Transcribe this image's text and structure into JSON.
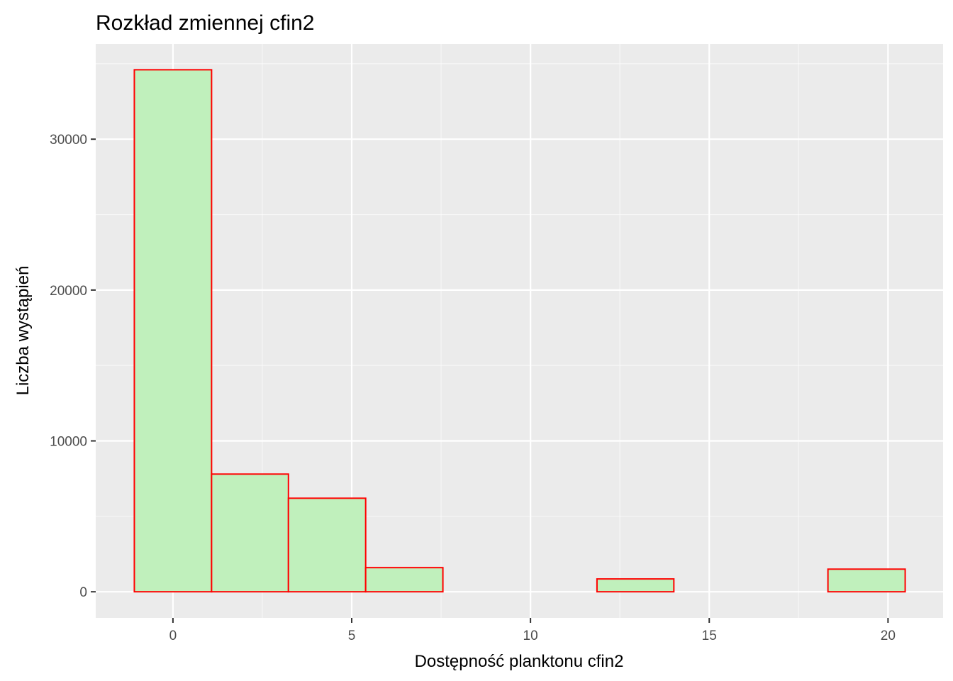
{
  "chart_data": {
    "type": "bar",
    "title": "Rozkład zmiennej cfin2",
    "xlabel": "Dostępność planktonu cfin2",
    "ylabel": "Liczba wystąpień",
    "xlim": [
      -2.16,
      21.54
    ],
    "ylim": [
      -1730,
      36310
    ],
    "x_ticks": [
      0,
      5,
      10,
      15,
      20
    ],
    "y_ticks": [
      0,
      10000,
      20000,
      30000
    ],
    "x_tick_labels": [
      "0",
      "5",
      "10",
      "15",
      "20"
    ],
    "y_tick_labels": [
      "0",
      "10000",
      "20000",
      "30000"
    ],
    "grid": true,
    "bins": [
      {
        "x0": -1.08,
        "x1": 1.08,
        "count": 34600
      },
      {
        "x0": 1.08,
        "x1": 3.23,
        "count": 7800
      },
      {
        "x0": 3.23,
        "x1": 5.39,
        "count": 6200
      },
      {
        "x0": 5.39,
        "x1": 7.55,
        "count": 1600
      },
      {
        "x0": 7.55,
        "x1": 9.7,
        "count": 0
      },
      {
        "x0": 9.7,
        "x1": 11.86,
        "count": 0
      },
      {
        "x0": 11.86,
        "x1": 14.01,
        "count": 850
      },
      {
        "x0": 14.01,
        "x1": 16.17,
        "count": 0
      },
      {
        "x0": 16.17,
        "x1": 18.32,
        "count": 0
      },
      {
        "x0": 18.32,
        "x1": 20.48,
        "count": 1500
      }
    ],
    "colors": {
      "fill": "#c0f0bc",
      "stroke": "#ff0000",
      "panel": "#ebebeb",
      "grid_major": "#ffffff",
      "grid_minor": "#f5f5f5"
    }
  }
}
